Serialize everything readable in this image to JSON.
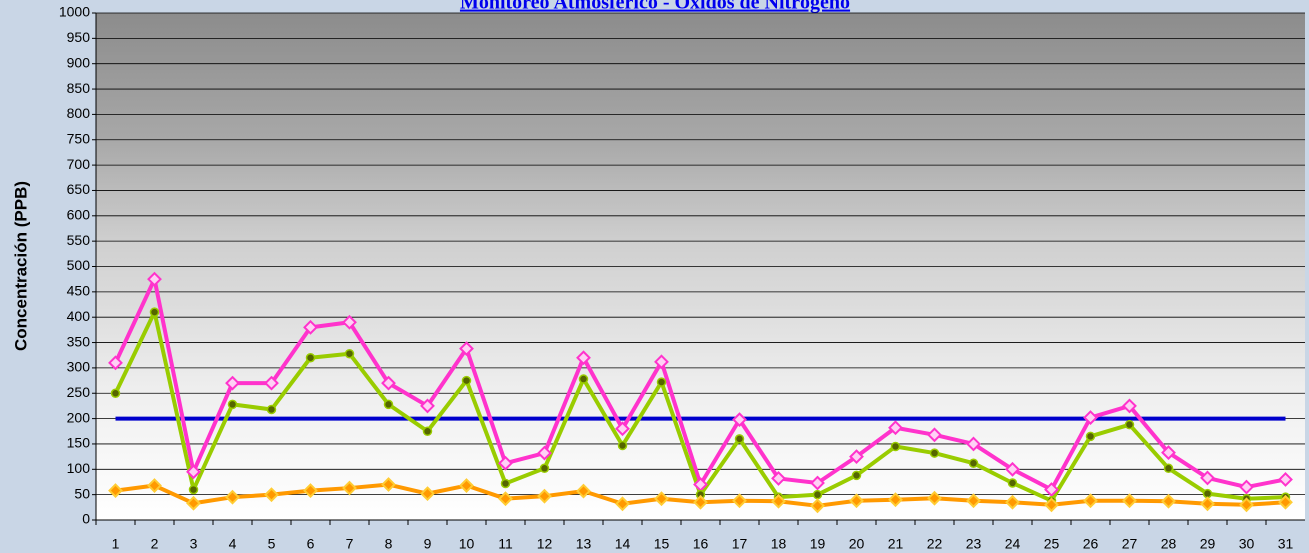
{
  "chart_data": {
    "type": "line",
    "title": "Monitoreo Atmosférico - Óxidos de Nitrógeno",
    "y_label": "Concentración  (PPB)",
    "categories": [
      "1",
      "2",
      "3",
      "4",
      "5",
      "6",
      "7",
      "8",
      "9",
      "10",
      "11",
      "12",
      "13",
      "14",
      "15",
      "16",
      "17",
      "18",
      "19",
      "20",
      "21",
      "22",
      "23",
      "24",
      "25",
      "26",
      "27",
      "28",
      "29",
      "30",
      "31"
    ],
    "series": [
      {
        "color": "#0000cc",
        "marker": "none",
        "values": [
          200,
          200,
          200,
          200,
          200,
          200,
          200,
          200,
          200,
          200,
          200,
          200,
          200,
          200,
          200,
          200,
          200,
          200,
          200,
          200,
          200,
          200,
          200,
          200,
          200,
          200,
          200,
          200,
          200,
          200,
          200
        ]
      },
      {
        "color": "#ff33cc",
        "marker": "diamond",
        "values": [
          310,
          475,
          95,
          270,
          270,
          380,
          390,
          270,
          225,
          338,
          112,
          132,
          320,
          180,
          312,
          70,
          198,
          82,
          73,
          125,
          182,
          168,
          150,
          100,
          60,
          202,
          225,
          133,
          83,
          65,
          80
        ]
      },
      {
        "color": "#99cc00",
        "marker": "circle",
        "values": [
          250,
          410,
          60,
          228,
          218,
          320,
          328,
          228,
          175,
          275,
          72,
          102,
          278,
          147,
          272,
          50,
          160,
          45,
          50,
          88,
          145,
          132,
          112,
          73,
          38,
          165,
          188,
          102,
          52,
          42,
          45
        ]
      },
      {
        "color": "#ff9900",
        "marker": "diamond",
        "values": [
          58,
          68,
          33,
          45,
          50,
          58,
          63,
          70,
          52,
          68,
          42,
          47,
          57,
          32,
          42,
          35,
          38,
          37,
          28,
          38,
          40,
          43,
          38,
          35,
          30,
          38,
          38,
          37,
          32,
          30,
          35
        ]
      }
    ],
    "ylim": [
      0,
      1000
    ],
    "yticks": [
      0,
      50,
      100,
      150,
      200,
      250,
      300,
      350,
      400,
      450,
      500,
      550,
      600,
      650,
      700,
      750,
      800,
      850,
      900,
      950,
      1000
    ],
    "grid": true
  }
}
